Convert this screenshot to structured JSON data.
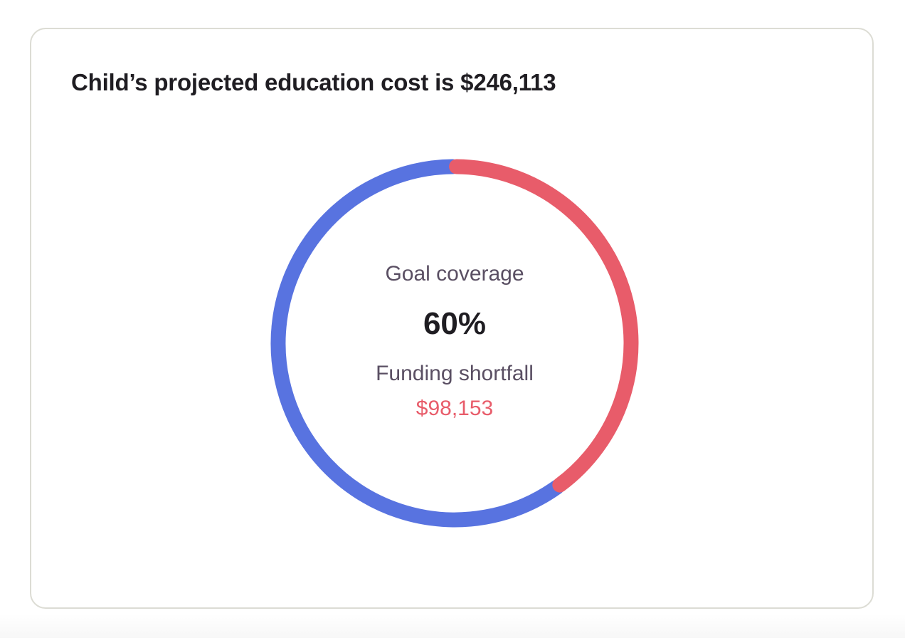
{
  "card": {
    "title": "Child’s projected education cost is $246,113"
  },
  "summary": {
    "coverage_label": "Goal coverage",
    "coverage_value": "60%",
    "shortfall_label": "Funding shortfall",
    "shortfall_value": "$98,153"
  },
  "colors": {
    "covered": "#5873e0",
    "shortfall": "#e85c6a",
    "shortfall_text": "#e85c6a"
  },
  "chart_data": {
    "type": "pie",
    "variant": "donut",
    "title": "Child’s projected education cost is $246,113",
    "start_angle_deg": 0,
    "direction": "counterclockwise",
    "slices": [
      {
        "key": "covered",
        "value": 60,
        "color": "#5873e0"
      },
      {
        "key": "shortfall",
        "value": 40,
        "color": "#e85c6a"
      }
    ]
  }
}
